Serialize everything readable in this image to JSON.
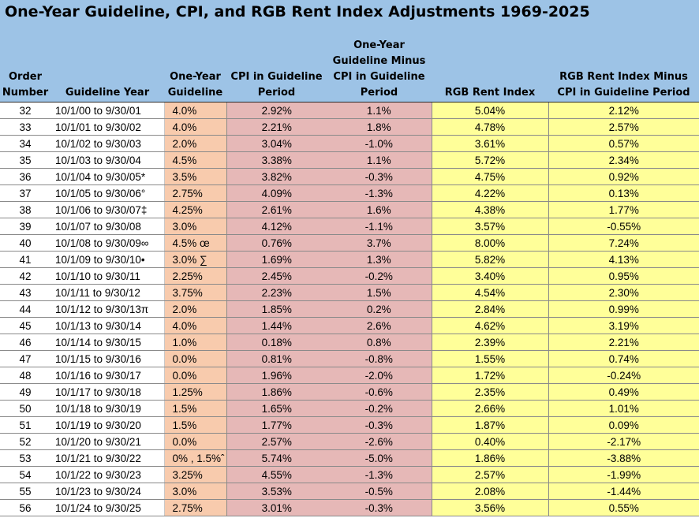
{
  "title": "One-Year Guideline, CPI, and RGB Rent Index Adjustments 1969-2025",
  "headers": {
    "order": "Order Number",
    "year": "Guideline Year",
    "guideline": "One-Year Guideline",
    "cpi": "CPI in Guideline Period",
    "minus": "One-Year Guideline Minus CPI in Guideline Period",
    "rgb": "RGB Rent Index",
    "rgb_minus": "RGB Rent Index Minus CPI in Guideline Period"
  },
  "rows": [
    {
      "order": "32",
      "year": "10/1/00 to 9/30/01",
      "guideline": "4.0%",
      "cpi": "2.92%",
      "minus": "1.1%",
      "rgb": "5.04%",
      "rgb_minus": "2.12%"
    },
    {
      "order": "33",
      "year": "10/1/01 to 9/30/02",
      "guideline": "4.0%",
      "cpi": "2.21%",
      "minus": "1.8%",
      "rgb": "4.78%",
      "rgb_minus": "2.57%"
    },
    {
      "order": "34",
      "year": "10/1/02 to 9/30/03",
      "guideline": "2.0%",
      "cpi": "3.04%",
      "minus": "-1.0%",
      "rgb": "3.61%",
      "rgb_minus": "0.57%"
    },
    {
      "order": "35",
      "year": "10/1/03 to 9/30/04",
      "guideline": "4.5%",
      "cpi": "3.38%",
      "minus": "1.1%",
      "rgb": "5.72%",
      "rgb_minus": "2.34%"
    },
    {
      "order": "36",
      "year": "10/1/04 to 9/30/05*",
      "guideline": "3.5%",
      "cpi": "3.82%",
      "minus": "-0.3%",
      "rgb": "4.75%",
      "rgb_minus": "0.92%"
    },
    {
      "order": "37",
      "year": "10/1/05 to 9/30/06°",
      "guideline": "2.75%",
      "cpi": "4.09%",
      "minus": "-1.3%",
      "rgb": "4.22%",
      "rgb_minus": "0.13%"
    },
    {
      "order": "38",
      "year": "10/1/06 to 9/30/07‡",
      "guideline": "4.25%",
      "cpi": "2.61%",
      "minus": "1.6%",
      "rgb": "4.38%",
      "rgb_minus": "1.77%"
    },
    {
      "order": "39",
      "year": "10/1/07 to 9/30/08",
      "guideline": "3.0%",
      "cpi": "4.12%",
      "minus": "-1.1%",
      "rgb": "3.57%",
      "rgb_minus": "-0.55%"
    },
    {
      "order": "40",
      "year": "10/1/08 to 9/30/09∞",
      "guideline": "4.5% œ",
      "cpi": "0.76%",
      "minus": "3.7%",
      "rgb": "8.00%",
      "rgb_minus": "7.24%"
    },
    {
      "order": "41",
      "year": "10/1/09 to 9/30/10•",
      "guideline": "3.0% ∑",
      "cpi": "1.69%",
      "minus": "1.3%",
      "rgb": "5.82%",
      "rgb_minus": "4.13%"
    },
    {
      "order": "42",
      "year": "10/1/10 to 9/30/11",
      "guideline": "2.25%",
      "cpi": "2.45%",
      "minus": "-0.2%",
      "rgb": "3.40%",
      "rgb_minus": "0.95%"
    },
    {
      "order": "43",
      "year": "10/1/11 to 9/30/12",
      "guideline": "3.75%",
      "cpi": "2.23%",
      "minus": "1.5%",
      "rgb": "4.54%",
      "rgb_minus": "2.30%"
    },
    {
      "order": "44",
      "year": "10/1/12 to 9/30/13π",
      "guideline": "2.0%",
      "cpi": "1.85%",
      "minus": "0.2%",
      "rgb": "2.84%",
      "rgb_minus": "0.99%"
    },
    {
      "order": "45",
      "year": "10/1/13 to 9/30/14",
      "guideline": "4.0%",
      "cpi": "1.44%",
      "minus": "2.6%",
      "rgb": "4.62%",
      "rgb_minus": "3.19%"
    },
    {
      "order": "46",
      "year": "10/1/14 to 9/30/15",
      "guideline": "1.0%",
      "cpi": "0.18%",
      "minus": "0.8%",
      "rgb": "2.39%",
      "rgb_minus": "2.21%"
    },
    {
      "order": "47",
      "year": "10/1/15 to 9/30/16",
      "guideline": "0.0%",
      "cpi": "0.81%",
      "minus": "-0.8%",
      "rgb": "1.55%",
      "rgb_minus": "0.74%"
    },
    {
      "order": "48",
      "year": "10/1/16 to 9/30/17",
      "guideline": "0.0%",
      "cpi": "1.96%",
      "minus": "-2.0%",
      "rgb": "1.72%",
      "rgb_minus": "-0.24%"
    },
    {
      "order": "49",
      "year": "10/1/17 to 9/30/18",
      "guideline": "1.25%",
      "cpi": "1.86%",
      "minus": "-0.6%",
      "rgb": "2.35%",
      "rgb_minus": "0.49%"
    },
    {
      "order": "50",
      "year": "10/1/18 to 9/30/19",
      "guideline": "1.5%",
      "cpi": "1.65%",
      "minus": "-0.2%",
      "rgb": "2.66%",
      "rgb_minus": "1.01%"
    },
    {
      "order": "51",
      "year": "10/1/19 to 9/30/20",
      "guideline": "1.5%",
      "cpi": "1.77%",
      "minus": "-0.3%",
      "rgb": "1.87%",
      "rgb_minus": "0.09%"
    },
    {
      "order": "52",
      "year": "10/1/20 to 9/30/21",
      "guideline": "0.0%",
      "cpi": "2.57%",
      "minus": "-2.6%",
      "rgb": "0.40%",
      "rgb_minus": "-2.17%"
    },
    {
      "order": "53",
      "year": "10/1/21 to 9/30/22",
      "guideline": "0% , 1.5%ˆ",
      "cpi": "5.74%",
      "minus": "-5.0%",
      "rgb": "1.86%",
      "rgb_minus": "-3.88%"
    },
    {
      "order": "54",
      "year": "10/1/22 to 9/30/23",
      "guideline": "3.25%",
      "cpi": "4.55%",
      "minus": "-1.3%",
      "rgb": "2.57%",
      "rgb_minus": "-1.99%"
    },
    {
      "order": "55",
      "year": "10/1/23 to 9/30/24",
      "guideline": "3.0%",
      "cpi": "3.53%",
      "minus": "-0.5%",
      "rgb": "2.08%",
      "rgb_minus": "-1.44%"
    },
    {
      "order": "56",
      "year": "10/1/24 to 9/30/25",
      "guideline": "2.75%",
      "cpi": "3.01%",
      "minus": "-0.3%",
      "rgb": "3.56%",
      "rgb_minus": "0.55%"
    }
  ]
}
